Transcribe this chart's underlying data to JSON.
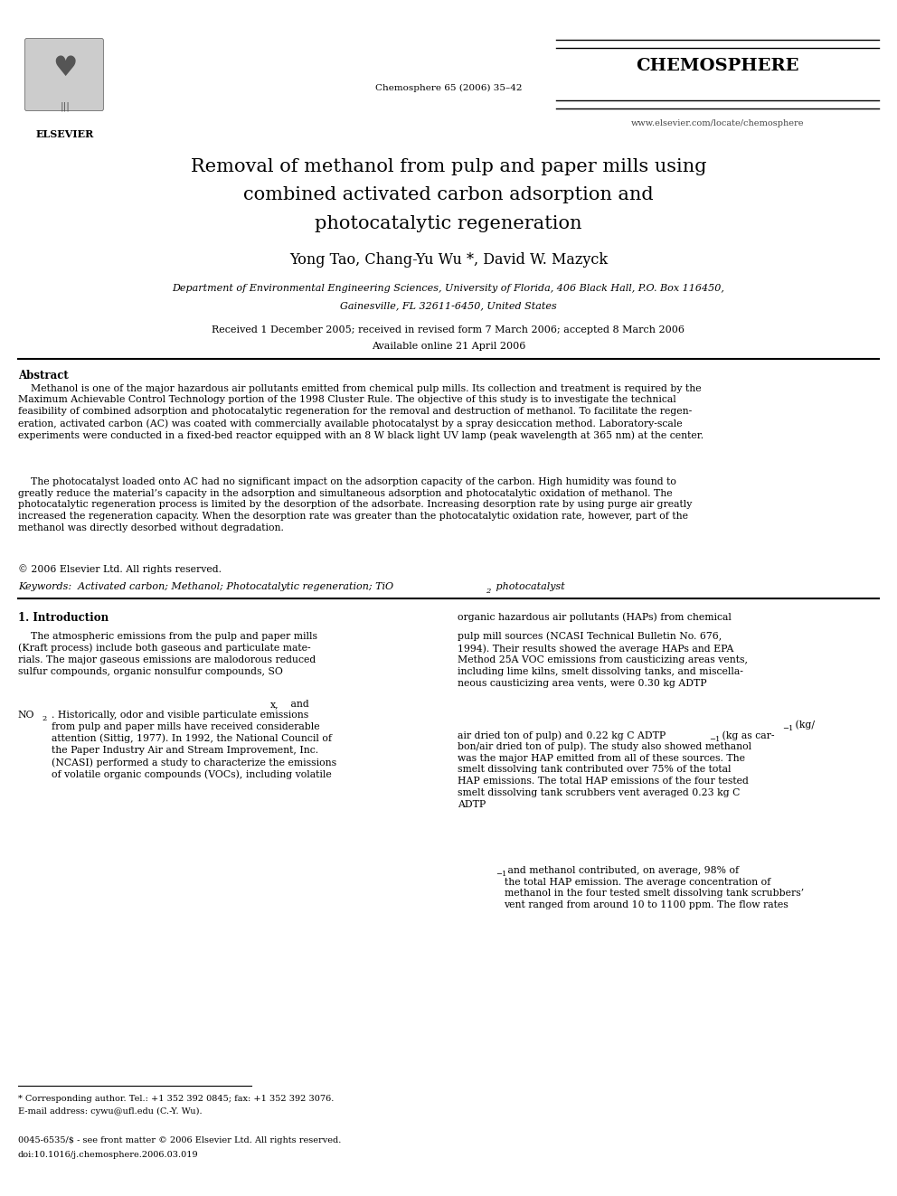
{
  "background_color": "#ffffff",
  "journal_name": "CHEMOSPHERE",
  "journal_info": "Chemosphere 65 (2006) 35–42",
  "journal_url": "www.elsevier.com/locate/chemosphere",
  "publisher": "ELSEVIER",
  "title_line1": "Removal of methanol from pulp and paper mills using",
  "title_line2": "combined activated carbon adsorption and",
  "title_line3": "photocatalytic regeneration",
  "authors": "Yong Tao, Chang-Yu Wu *, David W. Mazyck",
  "affiliation_line1": "Department of Environmental Engineering Sciences, University of Florida, 406 Black Hall, P.O. Box 116450,",
  "affiliation_line2": "Gainesville, FL 32611-6450, United States",
  "received": "Received 1 December 2005; received in revised form 7 March 2006; accepted 8 March 2006",
  "available": "Available online 21 April 2006",
  "abstract_heading": "Abstract",
  "copyright": "© 2006 Elsevier Ltd. All rights reserved.",
  "footnote_star": "* Corresponding author. Tel.: +1 352 392 0845; fax: +1 352 392 3076.",
  "footnote_email": "E-mail address: cywu@ufl.edu (C.-Y. Wu).",
  "footer_issn": "0045-6535/$ - see front matter © 2006 Elsevier Ltd. All rights reserved.",
  "footer_doi": "doi:10.1016/j.chemosphere.2006.03.019"
}
